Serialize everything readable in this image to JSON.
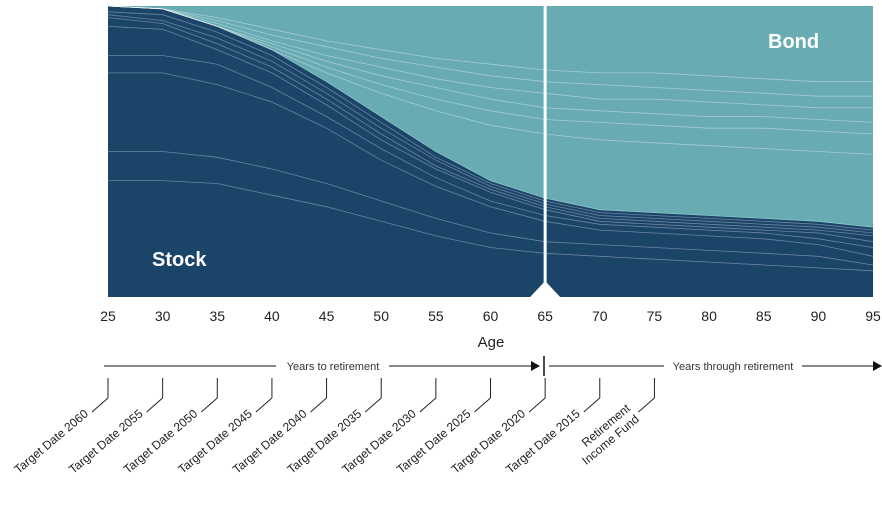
{
  "chart_data": {
    "type": "area",
    "xlabel": "Age",
    "x": [
      25,
      30,
      35,
      40,
      45,
      50,
      55,
      60,
      65,
      70,
      75,
      80,
      85,
      90,
      95
    ],
    "x_ticks": [
      "25",
      "30",
      "35",
      "40",
      "45",
      "50",
      "55",
      "60",
      "65",
      "70",
      "75",
      "80",
      "85",
      "90",
      "95"
    ],
    "ylim": [
      0,
      100
    ],
    "series": [
      {
        "name": "Stock",
        "values": [
          100,
          99,
          93,
          85,
          74,
          62,
          50,
          40,
          34,
          30,
          29,
          28,
          27,
          26,
          24
        ]
      },
      {
        "name": "Bond",
        "values": [
          0,
          1,
          7,
          15,
          26,
          38,
          50,
          60,
          66,
          70,
          71,
          72,
          73,
          74,
          76
        ]
      }
    ],
    "internal_lines": [
      [
        98,
        97,
        91,
        83,
        72,
        60,
        48,
        39,
        33,
        29,
        28,
        27,
        26,
        25,
        23
      ],
      [
        97,
        95,
        89,
        81,
        70,
        58,
        47,
        38,
        32,
        28,
        27,
        26,
        25,
        24,
        22
      ],
      [
        96,
        94,
        87,
        79,
        68,
        56,
        45,
        37,
        31,
        27,
        26,
        25,
        24,
        23,
        21
      ],
      [
        93,
        92,
        85,
        77,
        66,
        54,
        44,
        36,
        30,
        26,
        25,
        24,
        23,
        22,
        19
      ],
      [
        83,
        83,
        80,
        72,
        62,
        51,
        41,
        33,
        28,
        25,
        24,
        23,
        22,
        20,
        17
      ],
      [
        77,
        77,
        73,
        67,
        58,
        47,
        38,
        31,
        26,
        23,
        22,
        21,
        20,
        18,
        14
      ],
      [
        50,
        50,
        48,
        44,
        39,
        33,
        27,
        22,
        19,
        18,
        17,
        16,
        15,
        14,
        11
      ],
      [
        40,
        40,
        39,
        35,
        31,
        26,
        21,
        17,
        15,
        14,
        13,
        12,
        11,
        10,
        9
      ]
    ],
    "bond_lines": [
      [
        100,
        99,
        96,
        92,
        88,
        85,
        82,
        80,
        78,
        77,
        77,
        76,
        75,
        74,
        74
      ],
      [
        100,
        99,
        95,
        90,
        86,
        82,
        79,
        76,
        74,
        73,
        72,
        71,
        70,
        69,
        69
      ],
      [
        100,
        99,
        94,
        88,
        83,
        79,
        75,
        72,
        70,
        68,
        68,
        67,
        66,
        65,
        65
      ],
      [
        100,
        99,
        93,
        87,
        81,
        76,
        72,
        68,
        65,
        64,
        63,
        62,
        62,
        61,
        60
      ],
      [
        100,
        99,
        93,
        86,
        79,
        73,
        68,
        64,
        61,
        60,
        59,
        58,
        58,
        57,
        56
      ],
      [
        100,
        99,
        93,
        85,
        77,
        70,
        64,
        59,
        56,
        54,
        53,
        52,
        51,
        50,
        49
      ]
    ],
    "marker_age": 65,
    "phases": {
      "before": "Years to retirement",
      "after": "Years through retirement"
    },
    "funds": [
      {
        "label": "Target Date 2060",
        "age": 25
      },
      {
        "label": "Target Date 2055",
        "age": 30
      },
      {
        "label": "Target Date 2050",
        "age": 35
      },
      {
        "label": "Target Date 2045",
        "age": 40
      },
      {
        "label": "Target Date 2040",
        "age": 45
      },
      {
        "label": "Target Date 2035",
        "age": 50
      },
      {
        "label": "Target Date 2030",
        "age": 55
      },
      {
        "label": "Target Date 2025",
        "age": 60
      },
      {
        "label": "Target Date 2020",
        "age": 65
      },
      {
        "label": "Target Date 2015",
        "age": 70
      },
      {
        "label": "Retirement Income Fund",
        "lines": [
          "Retirement",
          "Income Fund"
        ],
        "age": 75
      }
    ],
    "colors": {
      "stock": "#1b4469",
      "bond": "#68abb3",
      "marker": "#ffffff",
      "axis": "#111111"
    }
  }
}
